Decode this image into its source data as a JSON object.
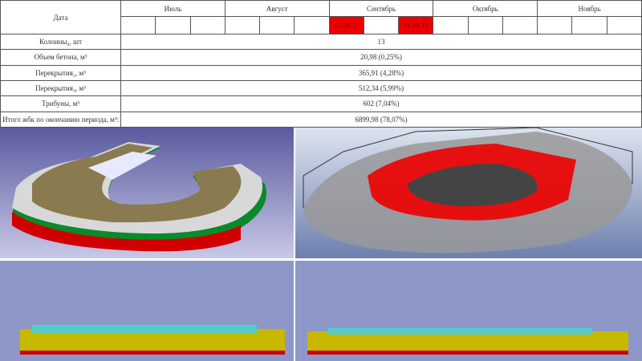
{
  "table": {
    "date_label": "Дата",
    "months": [
      "Июль",
      "Август",
      "Сентябрь",
      "Октябрь",
      "Ноябрь"
    ],
    "marked_dates": [
      "11.09.11",
      "11.09.11"
    ],
    "rows": [
      [
        "Колонны₄, шт",
        "13"
      ],
      [
        "Объем бетона, м³",
        "20,98 (0,25%)"
      ],
      [
        "Перекрытия₂, м³",
        "365,91 (4,28%)"
      ],
      [
        "Перекрытия₃, м³",
        "512,34 (5,99%)"
      ],
      [
        "Трибуны, м³",
        "602  (7,04%)"
      ],
      [
        "Итого жбк по окончанию периода, м³:",
        "6899,98  (78,07%)"
      ]
    ]
  }
}
